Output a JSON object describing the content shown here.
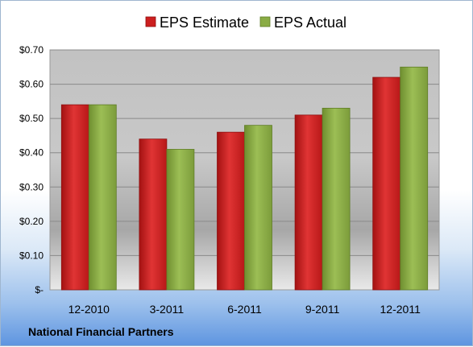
{
  "chart_data": {
    "type": "bar",
    "categories": [
      "12-2010",
      "3-2011",
      "6-2011",
      "9-2011",
      "12-2011"
    ],
    "series": [
      {
        "name": "EPS Estimate",
        "values": [
          0.54,
          0.44,
          0.46,
          0.51,
          0.62
        ],
        "color": "#cc1f1f"
      },
      {
        "name": "EPS Actual",
        "values": [
          0.54,
          0.41,
          0.48,
          0.53,
          0.65
        ],
        "color": "#8aac45"
      }
    ],
    "ylim": [
      0,
      0.7
    ],
    "yticks": [
      {
        "value": 0,
        "label": "$-"
      },
      {
        "value": 0.1,
        "label": "$0.10"
      },
      {
        "value": 0.2,
        "label": "$0.20"
      },
      {
        "value": 0.3,
        "label": "$0.30"
      },
      {
        "value": 0.4,
        "label": "$0.40"
      },
      {
        "value": 0.5,
        "label": "$0.50"
      },
      {
        "value": 0.6,
        "label": "$0.60"
      },
      {
        "value": 0.7,
        "label": "$0.70"
      }
    ],
    "grid": true,
    "legend_position": "top"
  },
  "footer": {
    "company": "National Financial Partners"
  }
}
